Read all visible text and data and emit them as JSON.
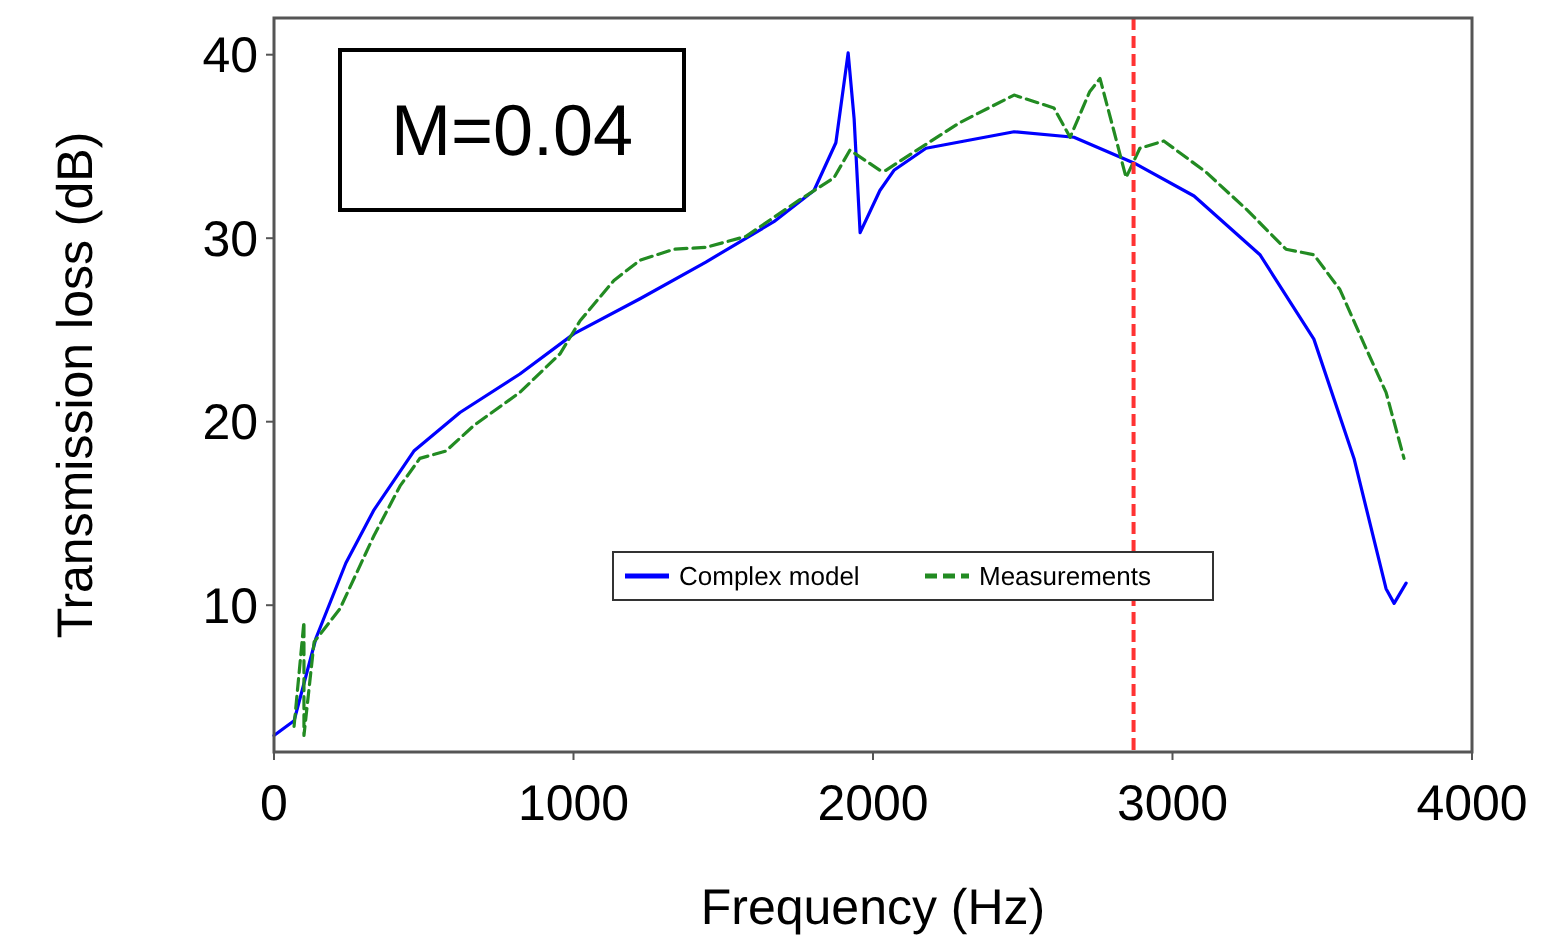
{
  "chart_data": {
    "type": "line",
    "xlabel": "Frequency (Hz)",
    "ylabel": "Transmission loss (dB)",
    "annotations": [
      "M=0.04"
    ],
    "xlim": [
      0,
      4000
    ],
    "xticks": [
      0,
      1000,
      2000,
      3000,
      4000
    ],
    "ylim": [
      2,
      42
    ],
    "yticks": [
      10,
      20,
      30,
      40
    ],
    "legend": "bottom",
    "ref_lines": [
      {
        "axis": "x",
        "value": 2870,
        "color": "#ff3333",
        "line_style": "dashed"
      }
    ],
    "series": [
      {
        "name": "Complex model",
        "color": "#0000ff",
        "line_style": "solid",
        "x": [
          0,
          67,
          140,
          240,
          334,
          467,
          621,
          821,
          1002,
          1222,
          1442,
          1669,
          1803,
          1876,
          1917,
          1937,
          1957,
          2023,
          2070,
          2177,
          2471,
          2671,
          2871,
          3072,
          3292,
          3472,
          3606,
          3713,
          3740,
          3780
        ],
        "values": [
          2.9,
          3.7,
          8.2,
          12.3,
          15.2,
          18.4,
          20.5,
          22.6,
          24.8,
          26.7,
          28.7,
          30.9,
          32.6,
          35.2,
          40.1,
          36.5,
          30.3,
          32.6,
          33.7,
          34.9,
          35.8,
          35.5,
          34.1,
          32.3,
          29.1,
          24.5,
          18.0,
          10.9,
          10.1,
          11.2
        ]
      },
      {
        "name": "Measurements",
        "color": "#228b22",
        "line_style": "dashed",
        "x": [
          67,
          100,
          100,
          134,
          220,
          334,
          421,
          487,
          574,
          668,
          821,
          955,
          1022,
          1135,
          1222,
          1336,
          1442,
          1576,
          1756,
          1870,
          1923,
          2023,
          2043,
          2137,
          2290,
          2471,
          2604,
          2658,
          2724,
          2758,
          2805,
          2845,
          2891,
          2971,
          3112,
          3245,
          3379,
          3472,
          3559,
          3646,
          3713,
          3773
        ],
        "values": [
          3.4,
          9.1,
          2.9,
          8.0,
          9.8,
          13.8,
          16.5,
          18.0,
          18.4,
          19.8,
          21.6,
          23.7,
          25.5,
          27.7,
          28.8,
          29.4,
          29.5,
          30.1,
          32.1,
          33.3,
          34.8,
          33.7,
          33.7,
          34.7,
          36.3,
          37.8,
          37.1,
          35.5,
          38.0,
          38.7,
          35.8,
          33.3,
          34.9,
          35.3,
          33.6,
          31.6,
          29.4,
          29.1,
          27.2,
          24.0,
          21.6,
          18.0
        ]
      }
    ]
  }
}
